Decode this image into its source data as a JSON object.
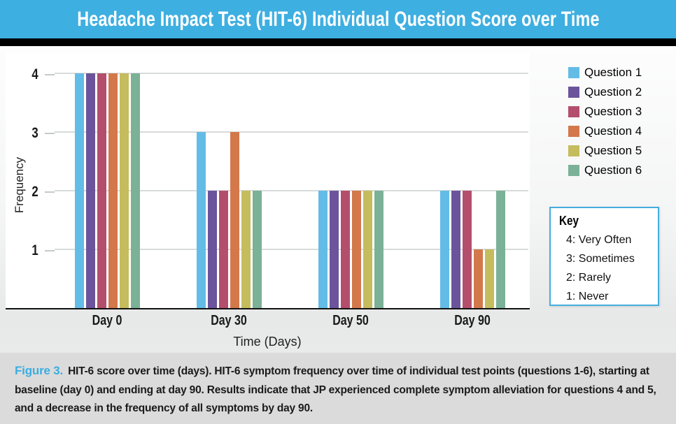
{
  "title": "Headache Impact Test (HIT-6) Individual Question Score over Time",
  "colors": {
    "banner_blue": "#3EAFE1",
    "black_strip": "#000000",
    "key_border": "#45ADDE",
    "figure_label_blue": "#3BAEE2",
    "caption_bg": "#DBDBDB",
    "gridline": "#D8DBDB",
    "tick_dash": "#C6C9C9",
    "axis": "#111111"
  },
  "chart_data": {
    "type": "bar",
    "title": "Headache Impact Test (HIT-6) Individual Question Score over Time",
    "categories": [
      "Day 0",
      "Day 30",
      "Day 50",
      "Day 90"
    ],
    "series": [
      {
        "name": "Question 1",
        "color": "#63BCE6",
        "values": [
          4,
          3,
          2,
          2
        ]
      },
      {
        "name": "Question 2",
        "color": "#6B549B",
        "values": [
          4,
          2,
          2,
          2
        ]
      },
      {
        "name": "Question 3",
        "color": "#B44E6D",
        "values": [
          4,
          2,
          2,
          2
        ]
      },
      {
        "name": "Question 4",
        "color": "#D3784B",
        "values": [
          4,
          3,
          2,
          1
        ]
      },
      {
        "name": "Question 5",
        "color": "#C5BC5D",
        "values": [
          4,
          2,
          2,
          1
        ]
      },
      {
        "name": "Question 6",
        "color": "#7BB197",
        "values": [
          4,
          2,
          2,
          2
        ]
      }
    ],
    "xlabel": "Time (Days)",
    "ylabel": "Frequency",
    "yticks": [
      1,
      2,
      3,
      4
    ],
    "ylim": [
      0,
      4.4
    ],
    "grid": true,
    "legend_position": "right"
  },
  "key": {
    "title": "Key",
    "items": [
      "4: Very Often",
      "3: Sometimes",
      "2: Rarely",
      "1: Never"
    ]
  },
  "caption": {
    "label": "Figure 3.",
    "text": "HIT-6 score over time (days). HIT-6 symptom frequency over time of individual test points (questions 1-6), starting at baseline (day 0) and ending at day 90. Results indicate that JP experienced complete symptom alleviation for questions 4 and 5, and a decrease in the frequency of all symptoms by day 90."
  }
}
